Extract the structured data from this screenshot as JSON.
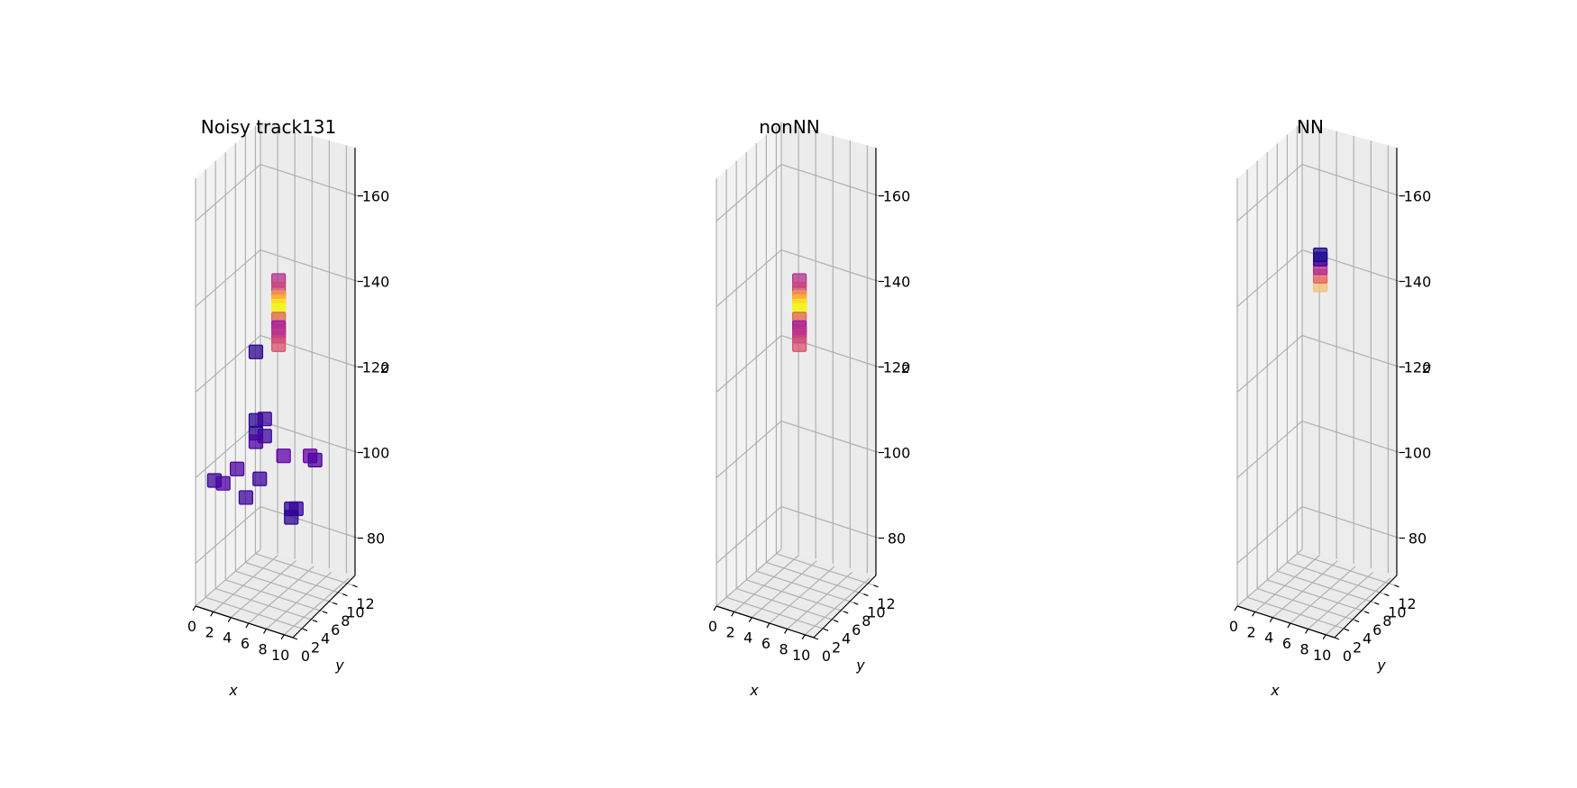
{
  "chart_data": [
    {
      "type": "scatter3d",
      "title": "Noisy track131",
      "xlabel": "x",
      "ylabel": "y",
      "zlabel": "z",
      "xticks": [
        0,
        2,
        4,
        6,
        8,
        10
      ],
      "yticks": [
        0,
        2,
        4,
        6,
        8,
        10,
        12
      ],
      "zticks": [
        80,
        100,
        120,
        140,
        160
      ],
      "xlim": [
        0,
        11
      ],
      "ylim": [
        0,
        13
      ],
      "zlim": [
        70,
        170
      ],
      "points": [
        {
          "x": 6,
          "y": 6,
          "z": 144,
          "color": "#b52f8c"
        },
        {
          "x": 6,
          "y": 6,
          "z": 142,
          "color": "#cc4778"
        },
        {
          "x": 6,
          "y": 6,
          "z": 140,
          "color": "#f89540"
        },
        {
          "x": 6,
          "y": 6,
          "z": 139,
          "color": "#fdb42f"
        },
        {
          "x": 6,
          "y": 6,
          "z": 138,
          "color": "#fde725"
        },
        {
          "x": 6,
          "y": 6,
          "z": 137,
          "color": "#f0f921"
        },
        {
          "x": 6,
          "y": 6,
          "z": 135,
          "color": "#e16462"
        },
        {
          "x": 6,
          "y": 6,
          "z": 133,
          "color": "#a01a9c"
        },
        {
          "x": 6,
          "y": 6,
          "z": 132,
          "color": "#b12a90"
        },
        {
          "x": 6,
          "y": 6,
          "z": 131,
          "color": "#c03a83"
        },
        {
          "x": 6,
          "y": 6,
          "z": 129,
          "color": "#d5536f"
        },
        {
          "x": 4,
          "y": 5,
          "z": 127,
          "color": "#2a0593"
        },
        {
          "x": 4,
          "y": 5,
          "z": 111,
          "color": "#2a0593"
        },
        {
          "x": 5,
          "y": 5,
          "z": 112,
          "color": "#3d049b"
        },
        {
          "x": 4,
          "y": 5,
          "z": 108,
          "color": "#2a0593"
        },
        {
          "x": 5,
          "y": 5,
          "z": 108,
          "color": "#3d049b"
        },
        {
          "x": 4,
          "y": 5,
          "z": 106,
          "color": "#4c02a1"
        },
        {
          "x": 3,
          "y": 3,
          "z": 101,
          "color": "#4c02a1"
        },
        {
          "x": 1,
          "y": 2,
          "z": 98,
          "color": "#3d049b"
        },
        {
          "x": 2,
          "y": 2,
          "z": 98,
          "color": "#4c02a1"
        },
        {
          "x": 5,
          "y": 4,
          "z": 99,
          "color": "#3d049b"
        },
        {
          "x": 6,
          "y": 7,
          "z": 102,
          "color": "#5c01a6"
        },
        {
          "x": 9,
          "y": 7,
          "z": 104,
          "color": "#6a00a8"
        },
        {
          "x": 9,
          "y": 8,
          "z": 102,
          "color": "#4c02a1"
        },
        {
          "x": 4,
          "y": 3,
          "z": 95,
          "color": "#3d049b"
        },
        {
          "x": 8,
          "y": 5,
          "z": 93,
          "color": "#2a0593"
        },
        {
          "x": 8,
          "y": 6,
          "z": 92,
          "color": "#3d049b"
        },
        {
          "x": 8,
          "y": 5,
          "z": 91,
          "color": "#2a0593"
        }
      ]
    },
    {
      "type": "scatter3d",
      "title": "nonNN",
      "xlabel": "x",
      "ylabel": "y",
      "zlabel": "z",
      "xticks": [
        0,
        2,
        4,
        6,
        8,
        10
      ],
      "yticks": [
        0,
        2,
        4,
        6,
        8,
        10,
        12
      ],
      "zticks": [
        80,
        100,
        120,
        140,
        160
      ],
      "xlim": [
        0,
        11
      ],
      "ylim": [
        0,
        13
      ],
      "zlim": [
        70,
        170
      ],
      "points": [
        {
          "x": 6,
          "y": 6,
          "z": 144,
          "color": "#b52f8c"
        },
        {
          "x": 6,
          "y": 6,
          "z": 142,
          "color": "#cc4778"
        },
        {
          "x": 6,
          "y": 6,
          "z": 140,
          "color": "#f89540"
        },
        {
          "x": 6,
          "y": 6,
          "z": 139,
          "color": "#fdb42f"
        },
        {
          "x": 6,
          "y": 6,
          "z": 138,
          "color": "#fde725"
        },
        {
          "x": 6,
          "y": 6,
          "z": 137,
          "color": "#f0f921"
        },
        {
          "x": 6,
          "y": 6,
          "z": 135,
          "color": "#e16462"
        },
        {
          "x": 6,
          "y": 6,
          "z": 133,
          "color": "#a01a9c"
        },
        {
          "x": 6,
          "y": 6,
          "z": 132,
          "color": "#b12a90"
        },
        {
          "x": 6,
          "y": 6,
          "z": 131,
          "color": "#c03a83"
        },
        {
          "x": 6,
          "y": 6,
          "z": 129,
          "color": "#d5536f"
        }
      ]
    },
    {
      "type": "scatter3d",
      "title": "NN",
      "xlabel": "x",
      "ylabel": "y",
      "zlabel": "z",
      "xticks": [
        0,
        2,
        4,
        6,
        8,
        10
      ],
      "yticks": [
        0,
        2,
        4,
        6,
        8,
        10,
        12
      ],
      "zticks": [
        80,
        100,
        120,
        140,
        160
      ],
      "xlim": [
        0,
        11
      ],
      "ylim": [
        0,
        13
      ],
      "zlim": [
        70,
        170
      ],
      "points": [
        {
          "x": 6,
          "y": 6,
          "z": 143,
          "color": "#f6c07a"
        },
        {
          "x": 6,
          "y": 6,
          "z": 145,
          "color": "#e16462"
        },
        {
          "x": 6,
          "y": 6,
          "z": 147,
          "color": "#b12a90"
        },
        {
          "x": 6,
          "y": 6,
          "z": 149,
          "color": "#3d049b"
        },
        {
          "x": 6,
          "y": 6,
          "z": 150,
          "color": "#1a0a8c"
        }
      ]
    }
  ]
}
